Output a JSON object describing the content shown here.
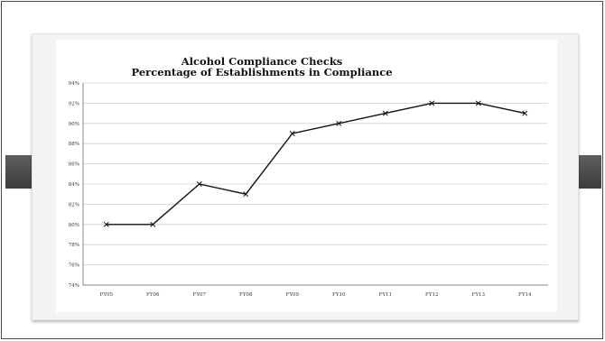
{
  "chart_data": {
    "type": "line",
    "title": "Alcohol Compliance Checks",
    "subtitle": "Percentage of Establishments in Compliance",
    "categories": [
      "FY05",
      "FY06",
      "FY07",
      "FY08",
      "FY09",
      "FY10",
      "FY11",
      "FY12",
      "FY13",
      "FY14"
    ],
    "values": [
      80,
      80,
      84,
      83,
      89,
      90,
      91,
      92,
      92,
      91
    ],
    "value_format": "percent",
    "ylim": [
      74,
      94
    ],
    "yticks": [
      74,
      76,
      78,
      80,
      82,
      84,
      86,
      88,
      90,
      92,
      94
    ],
    "grid": true,
    "marker": "x",
    "line_color": "#111111"
  }
}
